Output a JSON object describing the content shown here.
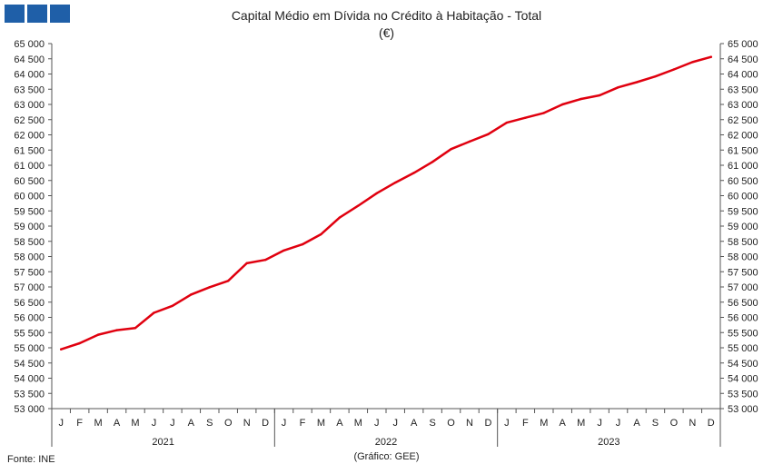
{
  "header": {
    "title": "Capital Médio em Dívida no Crédito à Habitação - Total",
    "unit": "(€)"
  },
  "footer": {
    "source": "Fonte: INE",
    "credit": "(Gráfico: GEE)"
  },
  "colors": {
    "line": "#e0000f",
    "logo": "#1f5fa8",
    "axis": "#555555"
  },
  "chart_data": {
    "type": "line",
    "title": "Capital Médio em Dívida no Crédito à Habitação - Total",
    "subtitle": "(€)",
    "ylim": [
      53000,
      65000
    ],
    "ytick_step": 500,
    "ytick_labels": [
      "53 000",
      "53 500",
      "54 000",
      "54 500",
      "55 000",
      "55 500",
      "56 000",
      "56 500",
      "57 000",
      "57 500",
      "58 000",
      "58 500",
      "59 000",
      "59 500",
      "60 000",
      "60 500",
      "61 000",
      "61 500",
      "62 000",
      "62 500",
      "63 000",
      "63 500",
      "64 000",
      "64 500",
      "65 000"
    ],
    "month_labels": [
      "J",
      "F",
      "M",
      "A",
      "M",
      "J",
      "J",
      "A",
      "S",
      "O",
      "N",
      "D",
      "J",
      "F",
      "M",
      "A",
      "M",
      "J",
      "J",
      "A",
      "S",
      "O",
      "N",
      "D",
      "J",
      "F",
      "M",
      "A",
      "M",
      "J",
      "J",
      "A",
      "S",
      "O",
      "N",
      "D"
    ],
    "years": [
      "2021",
      "2022",
      "2023"
    ],
    "grid": false,
    "legend": "none",
    "series": [
      {
        "values": [
          54950,
          55150,
          55430,
          55580,
          55650,
          56150,
          56380,
          56750,
          56990,
          57200,
          57780,
          57890,
          58200,
          58400,
          58730,
          59280,
          59670,
          60080,
          60430,
          60750,
          61110,
          61530,
          61780,
          62020,
          62400,
          62560,
          62720,
          63000,
          63180,
          63300,
          63560,
          63730,
          63920,
          64150,
          64390,
          64560
        ]
      }
    ]
  }
}
